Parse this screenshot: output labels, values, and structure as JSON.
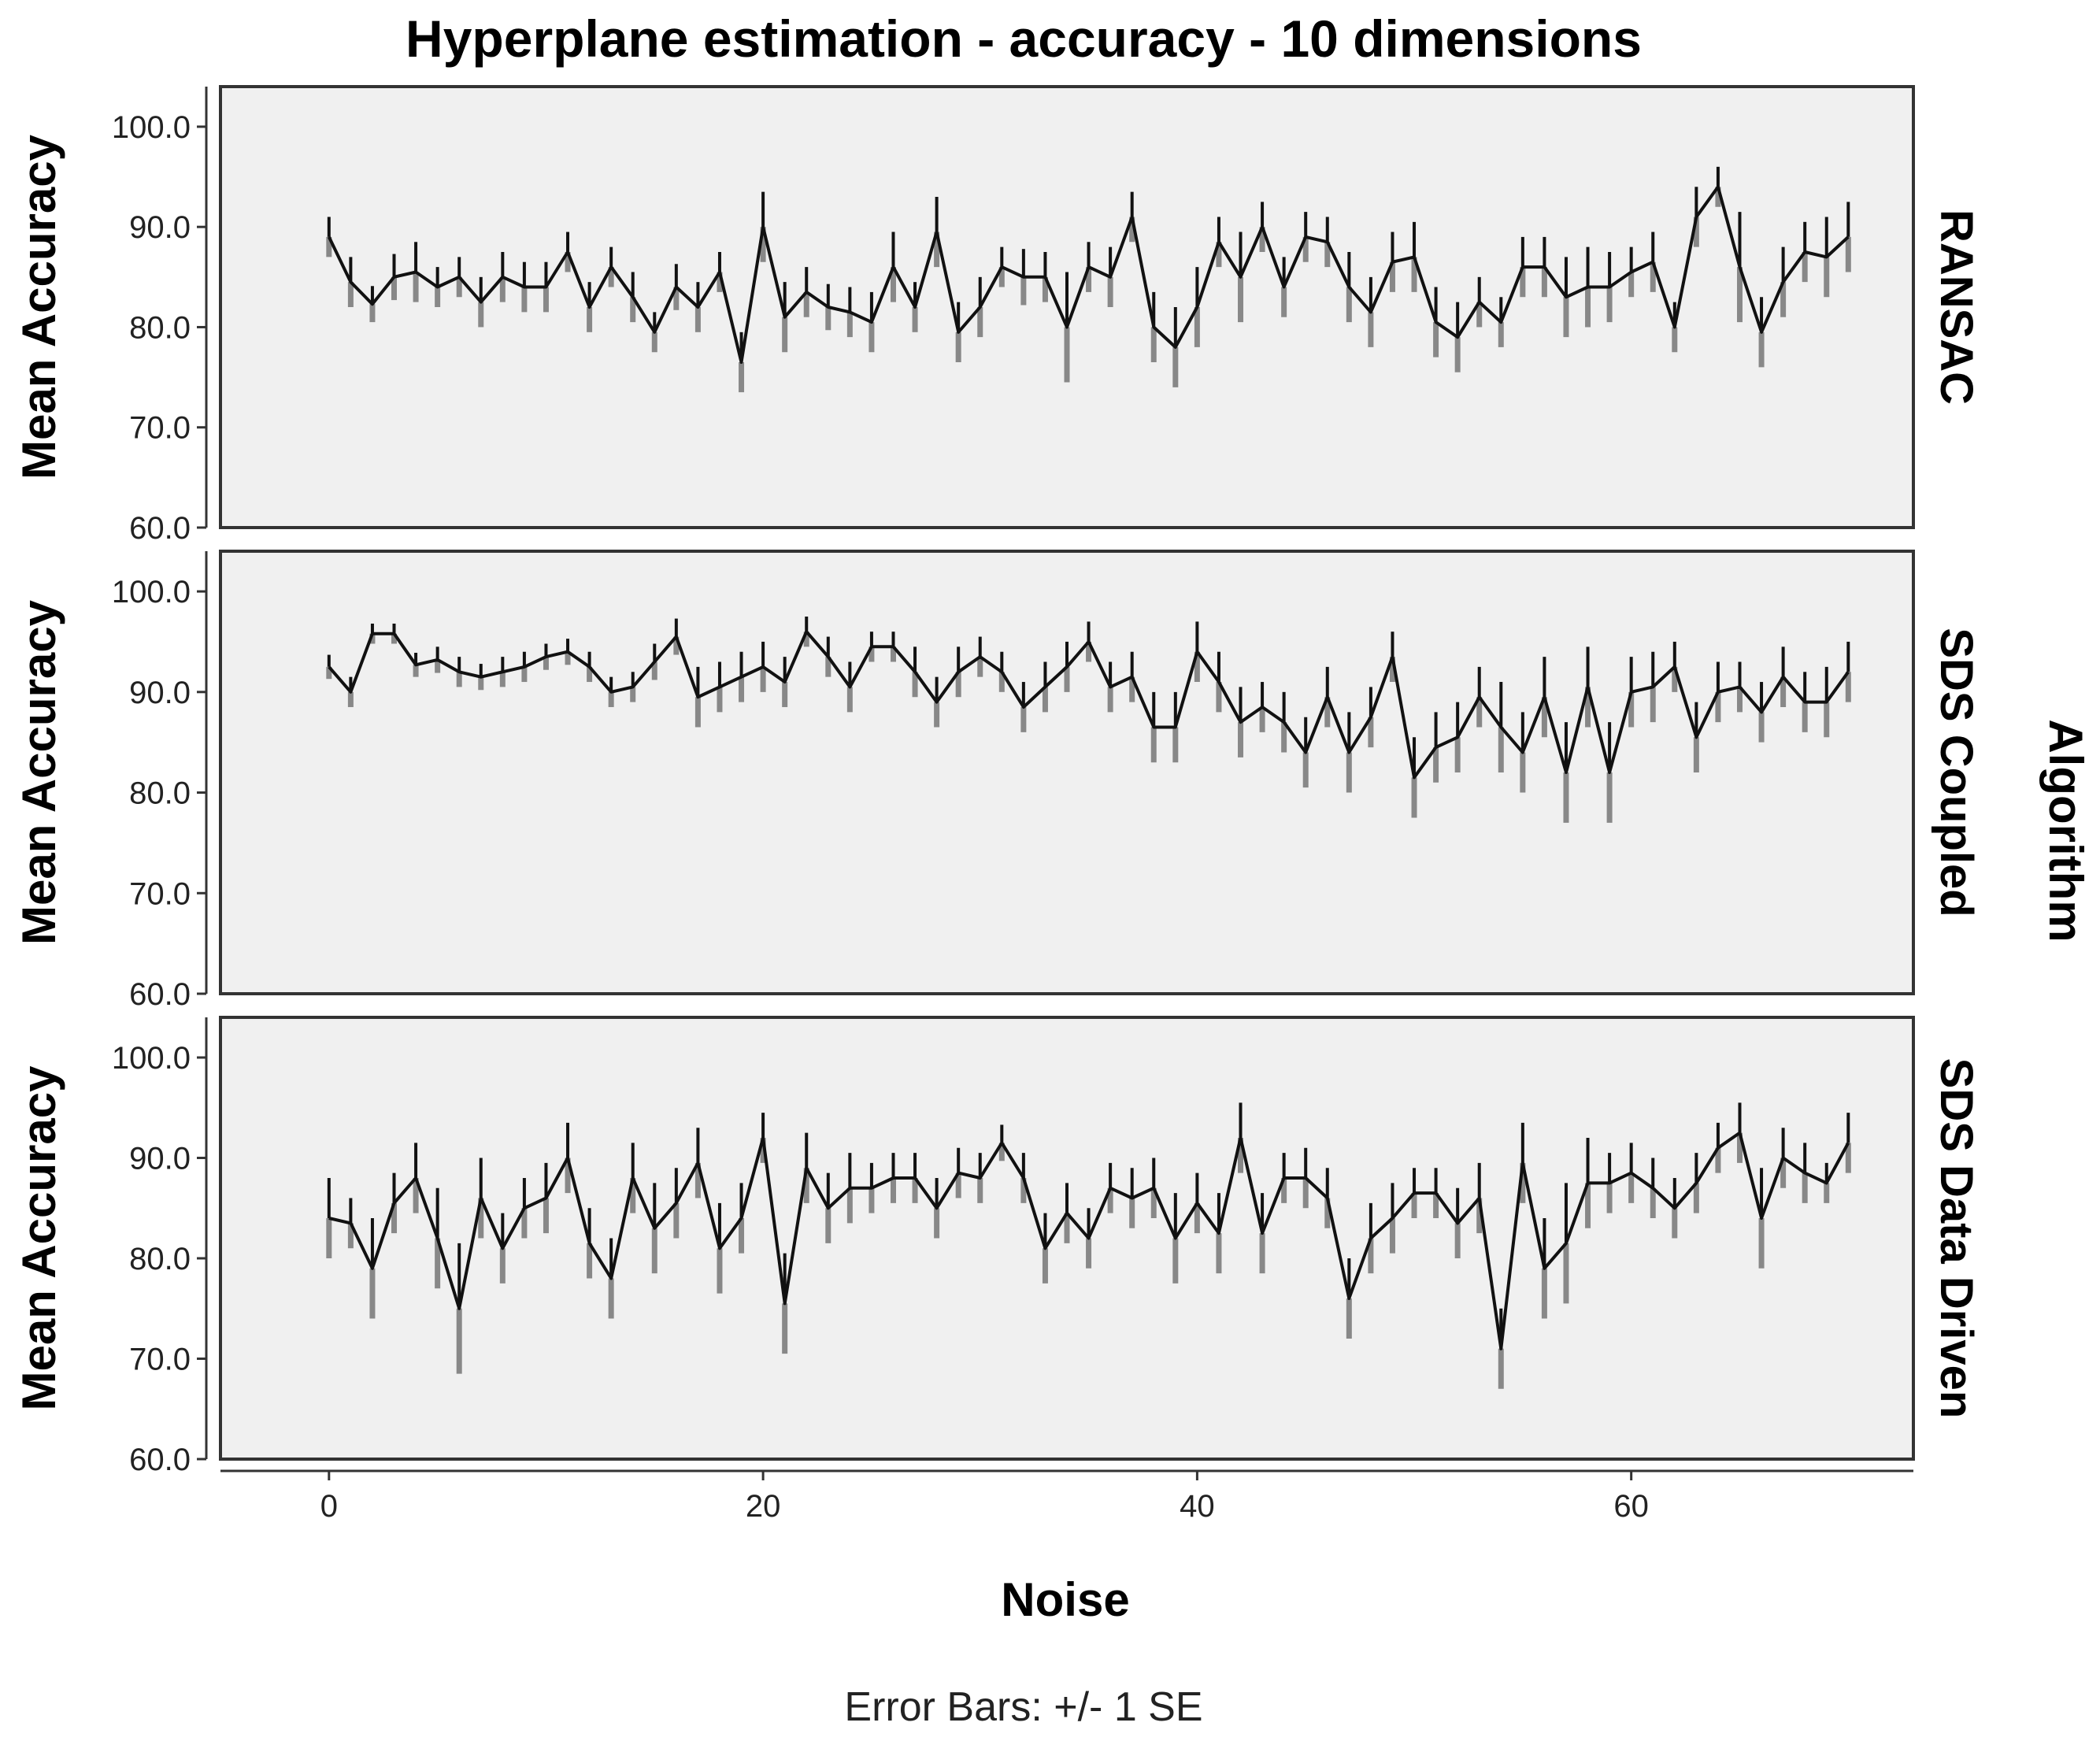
{
  "chart_data": {
    "type": "line",
    "title": "Hyperplane estimation - accuracy - 10 dimensions",
    "xlabel": "Noise",
    "ylabel": "Mean Accuracy",
    "facet_label": "Algorithm",
    "footnote": "Error Bars: +/- 1 SE",
    "xlim": [
      -5,
      73
    ],
    "ylim": [
      60,
      104
    ],
    "x_ticks": [
      0,
      20,
      40,
      60
    ],
    "y_ticks": [
      "60.0",
      "70.0",
      "80.0",
      "90.0",
      "100.0"
    ],
    "grid": false,
    "x": [
      0,
      1,
      2,
      3,
      4,
      5,
      6,
      7,
      8,
      9,
      10,
      11,
      12,
      13,
      14,
      15,
      16,
      17,
      18,
      19,
      20,
      21,
      22,
      23,
      24,
      25,
      26,
      27,
      28,
      29,
      30,
      31,
      32,
      33,
      34,
      35,
      36,
      37,
      38,
      39,
      40,
      41,
      42,
      43,
      44,
      45,
      46,
      47,
      48,
      49,
      50,
      51,
      52,
      53,
      54,
      55,
      56,
      57,
      58,
      59,
      60,
      61,
      62,
      63,
      64,
      65,
      66,
      67,
      68,
      69,
      70
    ],
    "series": [
      {
        "name": "RANSAC",
        "values": [
          89,
          84.5,
          82.3,
          85,
          85.5,
          84,
          85,
          82.5,
          85,
          84,
          84,
          87.5,
          82,
          86,
          83,
          79.5,
          84,
          82,
          85.5,
          76.5,
          90,
          81,
          83.5,
          82,
          81.5,
          80.5,
          86,
          82,
          89.5,
          79.5,
          82,
          86,
          85,
          85,
          80,
          86,
          85,
          91,
          80,
          78,
          82,
          88.5,
          85,
          90,
          84,
          89,
          88.5,
          84,
          81.5,
          86.5,
          87,
          80.5,
          79,
          82.5,
          80.5,
          86,
          86,
          83,
          84,
          84,
          85.5,
          86.5,
          80,
          91,
          94,
          86,
          79.5,
          84.5,
          87.5,
          87,
          89
        ],
        "se": [
          2,
          2.5,
          1.8,
          2.3,
          3,
          2,
          2,
          2.5,
          2.5,
          2.5,
          2.5,
          2,
          2.5,
          2,
          2.5,
          2,
          2.3,
          2.5,
          2,
          3,
          3.5,
          3.5,
          2.5,
          2.3,
          2.5,
          3,
          3.5,
          2.5,
          3.5,
          3,
          3,
          2,
          2.8,
          2.5,
          5.5,
          2.5,
          3,
          2.5,
          3.5,
          4,
          4,
          2.5,
          4.5,
          2.5,
          3,
          2.5,
          2.5,
          3.5,
          3.5,
          3,
          3.5,
          3.5,
          3.5,
          2.5,
          2.5,
          3,
          3,
          4,
          4,
          3.5,
          2.5,
          3,
          2.5,
          3,
          2,
          5.5,
          3.5,
          3.5,
          3,
          4,
          3.5
        ]
      },
      {
        "name": "SDS Coupled",
        "values": [
          92.5,
          90,
          95.8,
          95.8,
          92.7,
          93.2,
          92,
          91.5,
          92,
          92.5,
          93.5,
          94,
          92.5,
          90,
          90.5,
          93,
          95.5,
          89.5,
          90.5,
          91.5,
          92.5,
          91,
          96,
          93.5,
          90.5,
          94.5,
          94.5,
          92,
          89,
          92,
          93.5,
          92,
          88.5,
          90.5,
          92.5,
          95,
          90.5,
          91.5,
          86.5,
          86.5,
          94,
          91,
          87,
          88.5,
          87,
          84,
          89.5,
          84,
          87.5,
          93.5,
          81.5,
          84.5,
          85.5,
          89.5,
          86.5,
          84,
          89.5,
          82,
          90.5,
          82,
          90,
          90.5,
          92.5,
          85.5,
          90,
          90.5,
          88,
          91.5,
          89,
          89,
          92
        ],
        "se": [
          1.2,
          1.5,
          1,
          1,
          1.2,
          1.3,
          1.5,
          1.3,
          1.5,
          1.5,
          1.3,
          1.3,
          1.5,
          1.5,
          1.5,
          1.8,
          1.8,
          3,
          2.5,
          2.5,
          2.5,
          2.5,
          1.5,
          2,
          2.5,
          1.5,
          1.5,
          2.5,
          2.5,
          2.5,
          2,
          2,
          2.5,
          2.5,
          2.5,
          2,
          2.5,
          2.5,
          3.5,
          3.5,
          3,
          3,
          3.5,
          2.5,
          3,
          3.5,
          3,
          4,
          3,
          2.5,
          4,
          3.5,
          3.5,
          3,
          4.5,
          4,
          4,
          5,
          4,
          5,
          3.5,
          3.5,
          2.5,
          3.5,
          3,
          2.5,
          3,
          3,
          3,
          3.5,
          3
        ]
      },
      {
        "name": "SDS Data Driven",
        "values": [
          84,
          83.5,
          79,
          85.5,
          88,
          82,
          75,
          86,
          81,
          85,
          86,
          90,
          81.5,
          78,
          88,
          83,
          85.5,
          89.5,
          81,
          84,
          92,
          75.5,
          89,
          85,
          87,
          87,
          88,
          88,
          85,
          88.5,
          88,
          91.5,
          88,
          81,
          84.5,
          82,
          87,
          86,
          87,
          82,
          85.5,
          82.5,
          92,
          82.5,
          88,
          88,
          86,
          76,
          82,
          84,
          86.5,
          86.5,
          83.5,
          86,
          71,
          89.5,
          79,
          81.5,
          87.5,
          87.5,
          88.5,
          87,
          85,
          87.5,
          91,
          92.5,
          84,
          90,
          88.5,
          87.5,
          91.5
        ],
        "se": [
          4,
          2.5,
          5,
          3,
          3.5,
          5,
          6.5,
          4,
          3.5,
          3,
          3.5,
          3.5,
          3.5,
          4,
          3.5,
          4.5,
          3.5,
          3.5,
          4.5,
          3.5,
          2.5,
          5,
          3.5,
          3.5,
          3.5,
          2.5,
          2.5,
          2.5,
          3,
          2.5,
          2.5,
          1.8,
          2.5,
          3.5,
          3,
          3,
          2.5,
          3,
          3,
          4.5,
          3,
          4,
          3.5,
          4,
          2.5,
          3,
          3,
          4,
          3.5,
          3.5,
          2.5,
          2.5,
          3.5,
          3.5,
          4,
          4,
          5,
          6,
          4.5,
          3,
          3,
          3,
          3,
          3,
          2.5,
          3,
          5,
          3,
          3,
          2,
          3
        ]
      }
    ]
  }
}
